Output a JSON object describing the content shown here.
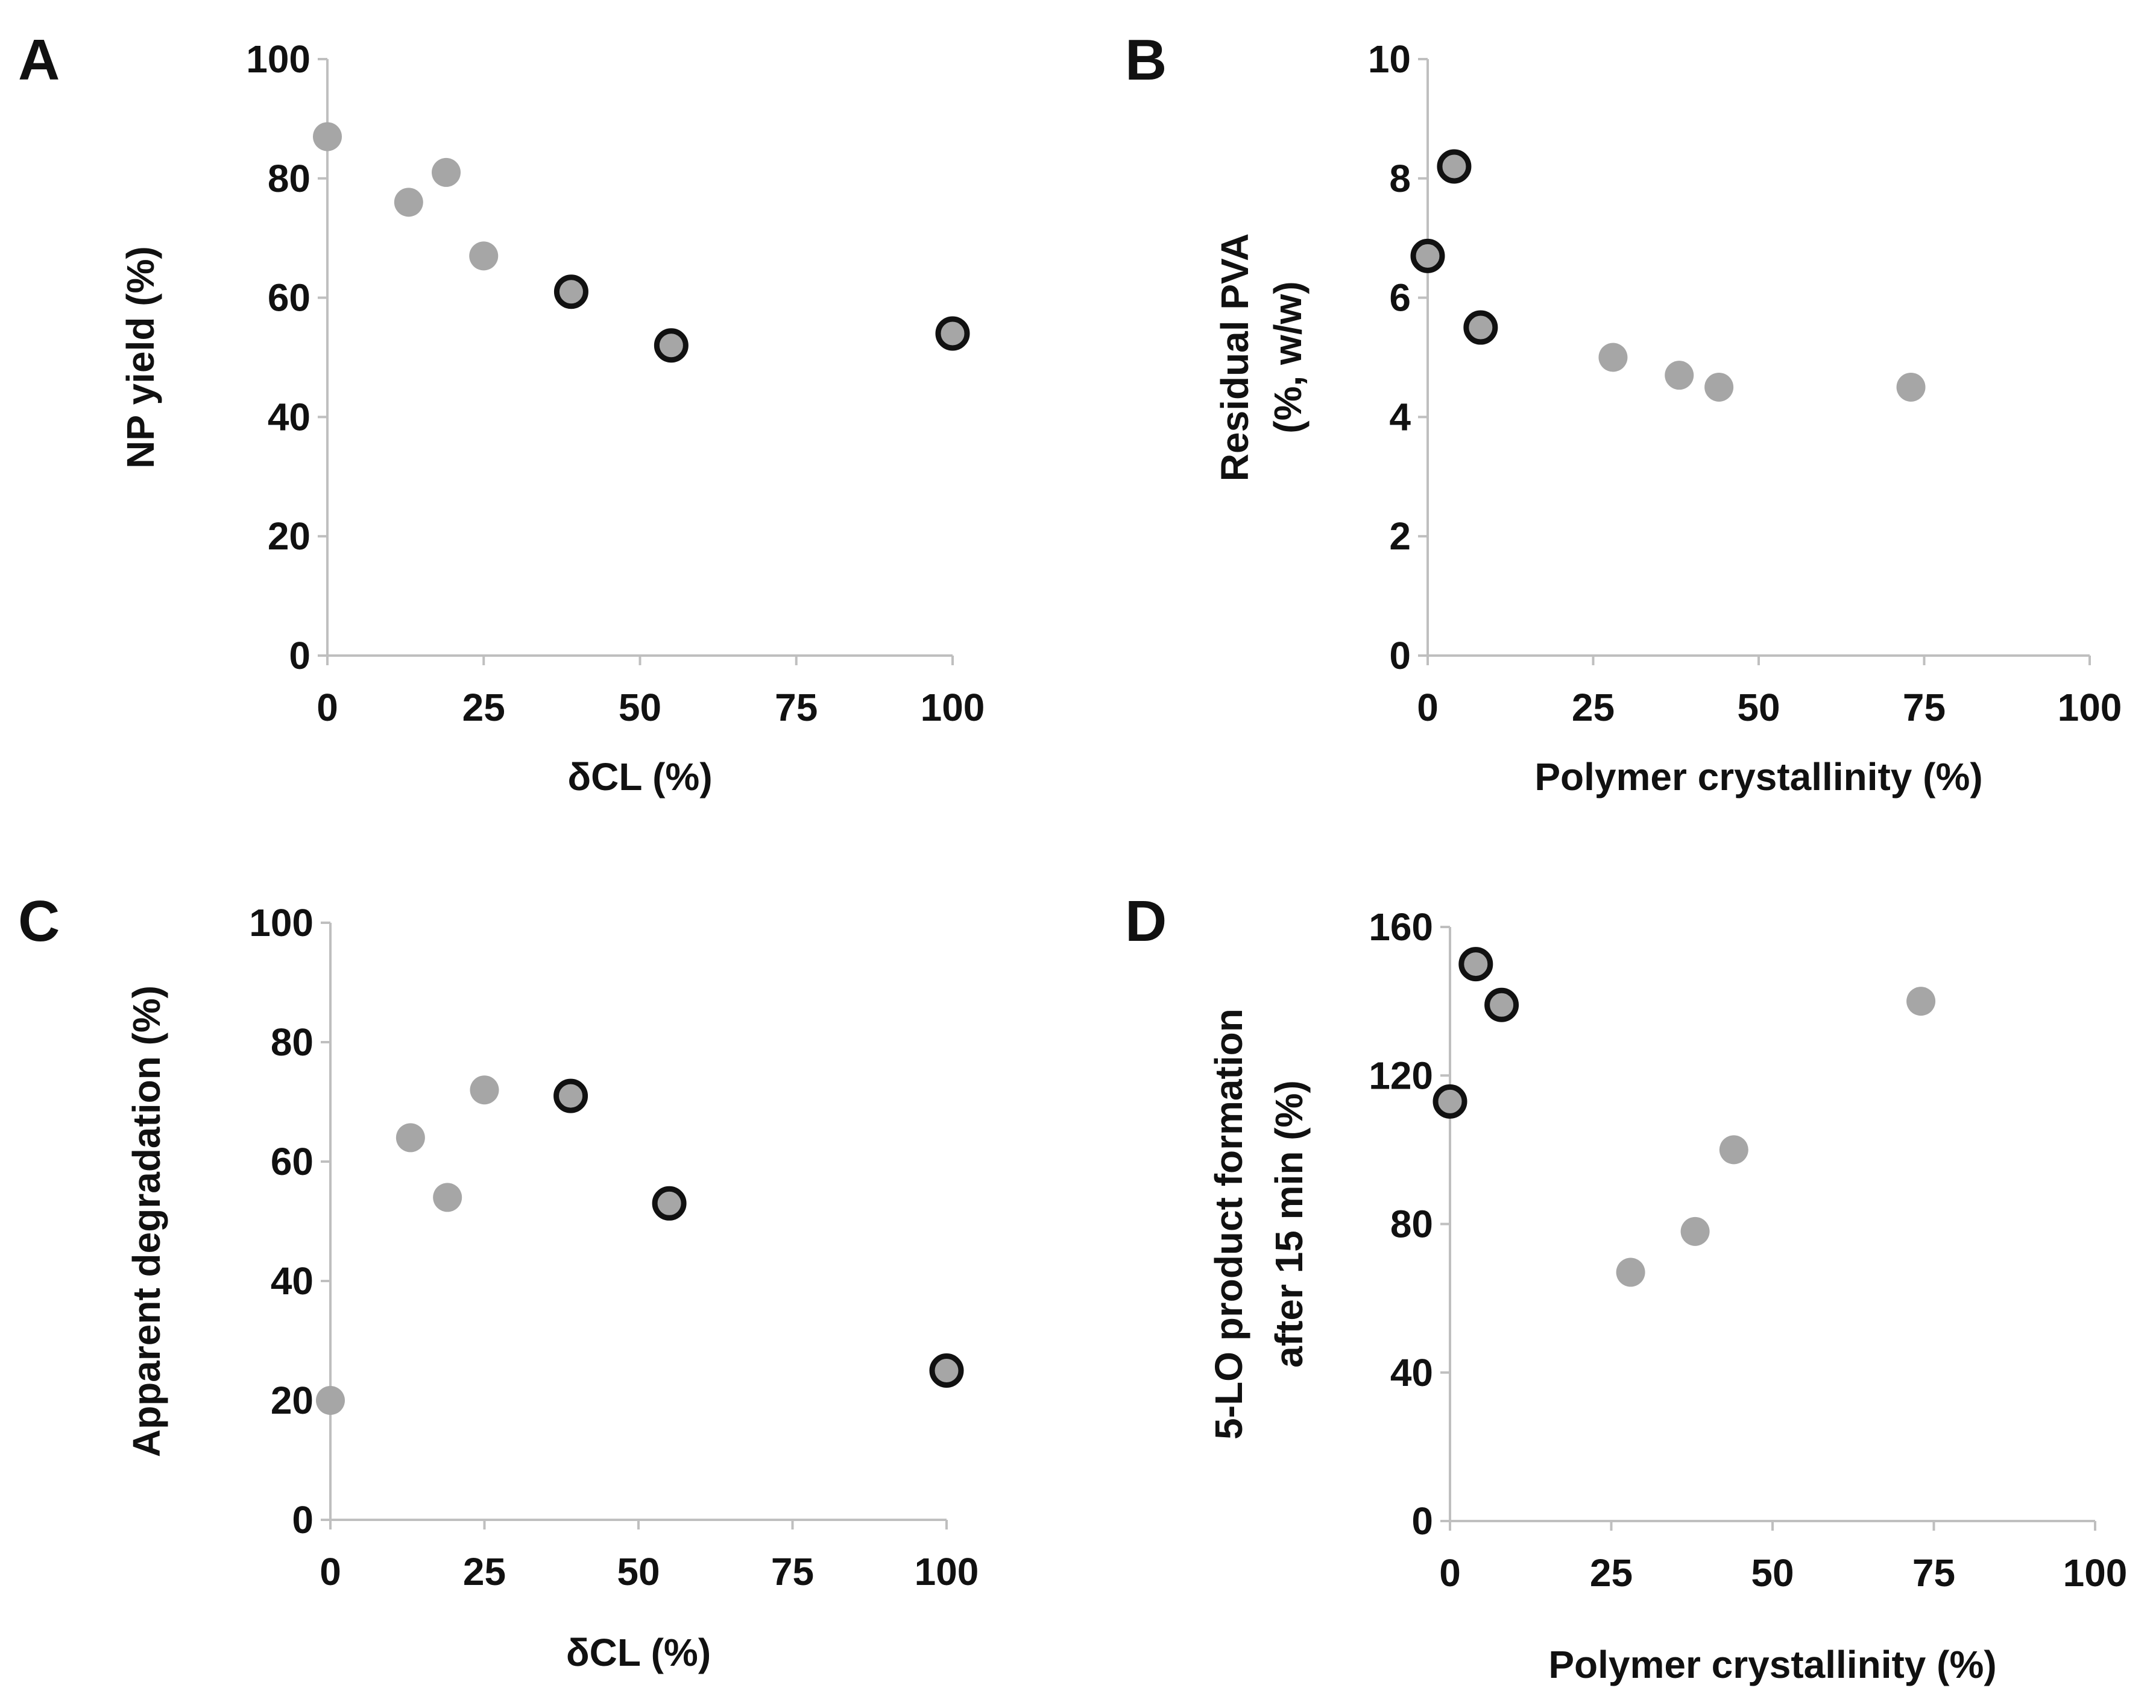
{
  "chart_data": [
    {
      "panel": "A",
      "type": "scatter",
      "title": "",
      "xlabel": "δCL (%)",
      "ylabel": "NP yield (%)",
      "xlim": [
        0,
        100
      ],
      "ylim": [
        0,
        100
      ],
      "xticks": [
        "0",
        "25",
        "50",
        "75",
        "100"
      ],
      "yticks": [
        "0",
        "20",
        "40",
        "60",
        "80",
        "100"
      ],
      "grid": false,
      "series": [
        {
          "color": "#a6a6a6",
          "outlined": false,
          "points": [
            [
              0,
              87
            ],
            [
              13,
              76
            ],
            [
              19,
              81
            ],
            [
              25,
              67
            ]
          ]
        },
        {
          "color": "#a6a6a6",
          "outlined": true,
          "points": [
            [
              39,
              61
            ],
            [
              55,
              52
            ],
            [
              100,
              54
            ]
          ]
        }
      ]
    },
    {
      "panel": "B",
      "type": "scatter",
      "title": "",
      "xlabel": "Polymer crystallinity (%)",
      "ylabel": "Residual PVA",
      "ylabel2": "(%, w/w)",
      "xlim": [
        0,
        100
      ],
      "ylim": [
        0,
        10
      ],
      "xticks": [
        "0",
        "25",
        "50",
        "75",
        "100"
      ],
      "yticks": [
        "0",
        "2",
        "4",
        "6",
        "8",
        "10"
      ],
      "grid": false,
      "series": [
        {
          "color": "#a6a6a6",
          "outlined": true,
          "points": [
            [
              0,
              6.7
            ],
            [
              4,
              8.2
            ],
            [
              8,
              5.5
            ]
          ]
        },
        {
          "color": "#a6a6a6",
          "outlined": false,
          "points": [
            [
              28,
              5.0
            ],
            [
              38,
              4.7
            ],
            [
              44,
              4.5
            ],
            [
              73,
              4.5
            ]
          ]
        }
      ]
    },
    {
      "panel": "C",
      "type": "scatter",
      "title": "",
      "xlabel": "δCL (%)",
      "ylabel": "Apparent degradation (%)",
      "xlim": [
        0,
        100
      ],
      "ylim": [
        0,
        100
      ],
      "xticks": [
        "0",
        "25",
        "50",
        "75",
        "100"
      ],
      "yticks": [
        "0",
        "20",
        "40",
        "60",
        "80",
        "100"
      ],
      "grid": false,
      "series": [
        {
          "color": "#a6a6a6",
          "outlined": false,
          "points": [
            [
              0,
              20
            ],
            [
              13,
              64
            ],
            [
              19,
              54
            ],
            [
              25,
              72
            ]
          ]
        },
        {
          "color": "#a6a6a6",
          "outlined": true,
          "points": [
            [
              39,
              71
            ],
            [
              55,
              53
            ],
            [
              100,
              25
            ]
          ]
        }
      ]
    },
    {
      "panel": "D",
      "type": "scatter",
      "title": "",
      "xlabel": "Polymer crystallinity (%)",
      "ylabel": "5-LO product formation",
      "ylabel2": "after 15 min (%)",
      "xlim": [
        0,
        100
      ],
      "ylim": [
        0,
        160
      ],
      "xticks": [
        "0",
        "25",
        "50",
        "75",
        "100"
      ],
      "yticks": [
        "0",
        "40",
        "80",
        "120",
        "160"
      ],
      "grid": false,
      "series": [
        {
          "color": "#a6a6a6",
          "outlined": true,
          "points": [
            [
              0,
              113
            ],
            [
              4,
              150
            ],
            [
              8,
              139
            ]
          ]
        },
        {
          "color": "#a6a6a6",
          "outlined": false,
          "points": [
            [
              28,
              67
            ],
            [
              38,
              78
            ],
            [
              44,
              100
            ],
            [
              73,
              140
            ]
          ]
        }
      ]
    }
  ]
}
